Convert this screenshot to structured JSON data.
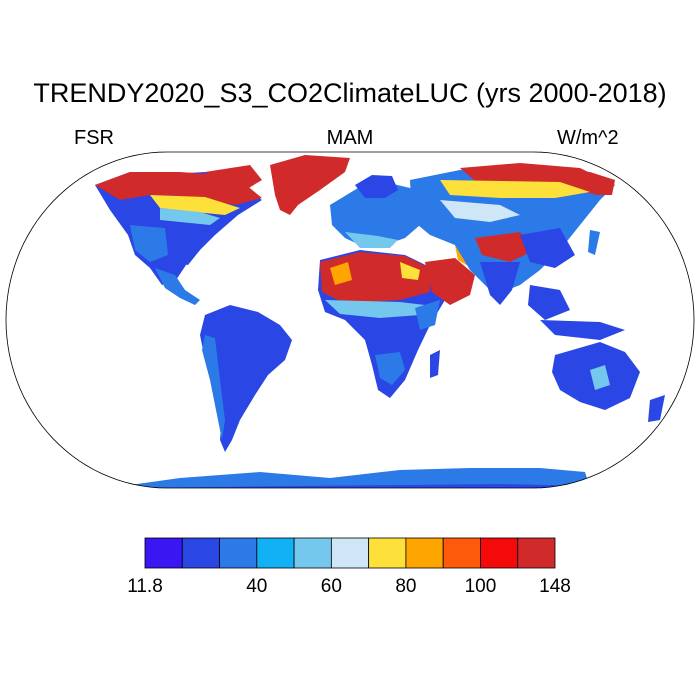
{
  "header": {
    "title": "TRENDY2020_S3_CO2ClimateLUC (yrs 2000-2018)",
    "left_label": "FSR",
    "center_label": "MAM",
    "right_label": "W/m^2"
  },
  "colorbar": {
    "colors": [
      "#3a16f2",
      "#2a46e4",
      "#2b7ae8",
      "#12b0f5",
      "#74c8ee",
      "#cfe6f6",
      "#fde039",
      "#ffa500",
      "#fd5a0b",
      "#f40a0a",
      "#d12a2a"
    ],
    "tick_labels": [
      "11.8",
      "40",
      "60",
      "80",
      "100",
      "148"
    ],
    "tick_boundaries": [
      0,
      3,
      5,
      7,
      9,
      11
    ]
  },
  "map": {
    "projection": "robinson",
    "variable": "FSR",
    "season": "MAM",
    "units": "W/m^2",
    "range": [
      11.8,
      148
    ]
  }
}
